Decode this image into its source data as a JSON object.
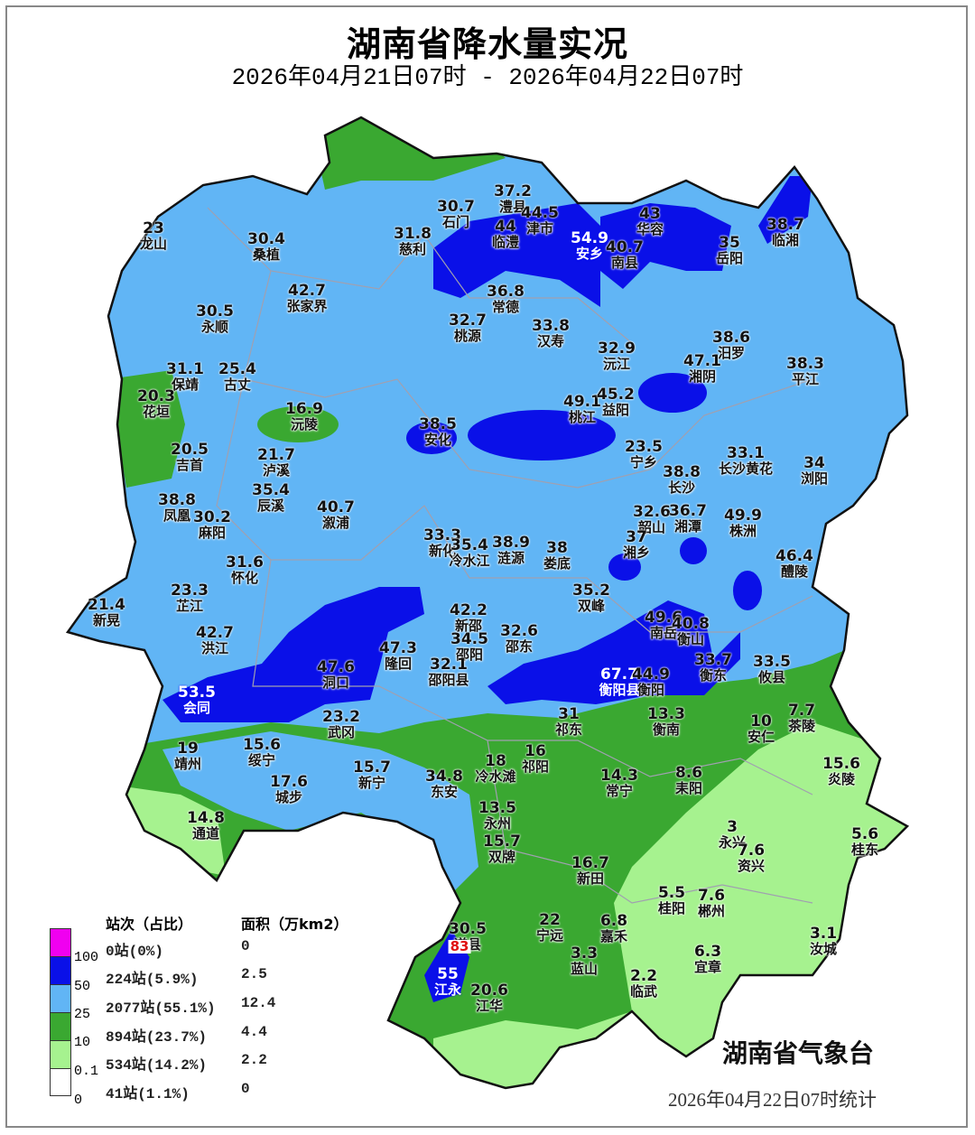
{
  "header": {
    "title": "湖南省降水量实况",
    "subtitle": "2026年04月21日07时 - 2026年04月22日07时"
  },
  "colors": {
    "level_0_0.1": "#ffffff",
    "level_0.1_10": "#a6f28f",
    "level_10_25": "#3aa831",
    "level_25_50": "#61b5f5",
    "level_50_100": "#0a10e8",
    "level_100_plus": "#f000f0",
    "boundary": "#a0a0b0"
  },
  "legend": {
    "header_count": "站次（占比）",
    "header_area": "面积（万km2）",
    "ticks": [
      "100",
      "50",
      "25",
      "10",
      "0.1",
      "0"
    ],
    "rows": [
      {
        "count": "0站(0%)",
        "area": "0"
      },
      {
        "count": "224站(5.9%)",
        "area": "2.5"
      },
      {
        "count": "2077站(55.1%)",
        "area": "12.4"
      },
      {
        "count": "894站(23.7%)",
        "area": "4.4"
      },
      {
        "count": "534站(14.2%)",
        "area": "2.2"
      },
      {
        "count": "41站(1.1%)",
        "area": "0"
      }
    ]
  },
  "stations": [
    {
      "v": "23",
      "n": "龙山"
    },
    {
      "v": "30.4",
      "n": "桑植"
    },
    {
      "v": "31.8",
      "n": "慈利"
    },
    {
      "v": "30.7",
      "n": "石门"
    },
    {
      "v": "37.2",
      "n": "澧县"
    },
    {
      "v": "44.5",
      "n": "津市"
    },
    {
      "v": "44",
      "n": "临澧"
    },
    {
      "v": "54.9",
      "n": "安乡"
    },
    {
      "v": "40.7",
      "n": "南县"
    },
    {
      "v": "43",
      "n": "华容"
    },
    {
      "v": "35",
      "n": "岳阳"
    },
    {
      "v": "38.7",
      "n": "临湘"
    },
    {
      "v": "42.7",
      "n": "张家界"
    },
    {
      "v": "36.8",
      "n": "常德"
    },
    {
      "v": "30.5",
      "n": "永顺"
    },
    {
      "v": "32.7",
      "n": "桃源"
    },
    {
      "v": "33.8",
      "n": "汉寿"
    },
    {
      "v": "38.6",
      "n": "汨罗"
    },
    {
      "v": "32.9",
      "n": "沅江"
    },
    {
      "v": "47.1",
      "n": "湘阴"
    },
    {
      "v": "38.3",
      "n": "平江"
    },
    {
      "v": "31.1",
      "n": "保靖"
    },
    {
      "v": "25.4",
      "n": "古丈"
    },
    {
      "v": "20.3",
      "n": "花垣"
    },
    {
      "v": "16.9",
      "n": "沅陵"
    },
    {
      "v": "49.1",
      "n": "桃江"
    },
    {
      "v": "45.2",
      "n": "益阳"
    },
    {
      "v": "38.5",
      "n": "安化"
    },
    {
      "v": "20.5",
      "n": "吉首"
    },
    {
      "v": "21.7",
      "n": "泸溪"
    },
    {
      "v": "23.5",
      "n": "宁乡"
    },
    {
      "v": "33.1",
      "n": "长沙黄花"
    },
    {
      "v": "34",
      "n": "浏阳"
    },
    {
      "v": "38.8",
      "n": "长沙"
    },
    {
      "v": "35.4",
      "n": "辰溪"
    },
    {
      "v": "38.8",
      "n": "凤凰"
    },
    {
      "v": "30.2",
      "n": "麻阳"
    },
    {
      "v": "40.7",
      "n": "溆浦"
    },
    {
      "v": "32.6",
      "n": "韶山"
    },
    {
      "v": "36.7",
      "n": "湘潭"
    },
    {
      "v": "49.9",
      "n": "株洲"
    },
    {
      "v": "33.3",
      "n": "新化"
    },
    {
      "v": "35.4",
      "n": "冷水江"
    },
    {
      "v": "38.9",
      "n": "涟源"
    },
    {
      "v": "38",
      "n": "娄底"
    },
    {
      "v": "37",
      "n": "湘乡"
    },
    {
      "v": "31.6",
      "n": "怀化"
    },
    {
      "v": "46.4",
      "n": "醴陵"
    },
    {
      "v": "23.3",
      "n": "芷江"
    },
    {
      "v": "35.2",
      "n": "双峰"
    },
    {
      "v": "21.4",
      "n": "新晃"
    },
    {
      "v": "42.2",
      "n": "新邵"
    },
    {
      "v": "34.5",
      "n": "邵阳"
    },
    {
      "v": "32.6",
      "n": "邵东"
    },
    {
      "v": "49.6",
      "n": "南岳"
    },
    {
      "v": "40.8",
      "n": "衡山"
    },
    {
      "v": "42.7",
      "n": "洪江"
    },
    {
      "v": "47.3",
      "n": "隆回"
    },
    {
      "v": "47.6",
      "n": "洞口"
    },
    {
      "v": "32.1",
      "n": "邵阳县"
    },
    {
      "v": "67.7",
      "n": "衡阳县"
    },
    {
      "v": "44.9",
      "n": "衡阳"
    },
    {
      "v": "33.7",
      "n": "衡东"
    },
    {
      "v": "33.5",
      "n": "攸县"
    },
    {
      "v": "53.5",
      "n": "会同"
    },
    {
      "v": "23.2",
      "n": "武冈"
    },
    {
      "v": "31",
      "n": "祁东"
    },
    {
      "v": "13.3",
      "n": "衡南"
    },
    {
      "v": "7.7",
      "n": "茶陵"
    },
    {
      "v": "10",
      "n": "安仁"
    },
    {
      "v": "19",
      "n": "靖州"
    },
    {
      "v": "15.6",
      "n": "绥宁"
    },
    {
      "v": "18",
      "n": "冷水滩"
    },
    {
      "v": "16",
      "n": "祁阳"
    },
    {
      "v": "8.6",
      "n": "耒阳"
    },
    {
      "v": "15.6",
      "n": "炎陵"
    },
    {
      "v": "17.6",
      "n": "城步"
    },
    {
      "v": "15.7",
      "n": "新宁"
    },
    {
      "v": "34.8",
      "n": "东安"
    },
    {
      "v": "14.3",
      "n": "常宁"
    },
    {
      "v": "13.5",
      "n": "永州"
    },
    {
      "v": "14.8",
      "n": "通道"
    },
    {
      "v": "3",
      "n": "永兴"
    },
    {
      "v": "7.6",
      "n": "资兴"
    },
    {
      "v": "5.6",
      "n": "桂东"
    },
    {
      "v": "15.7",
      "n": "双牌"
    },
    {
      "v": "16.7",
      "n": "新田"
    },
    {
      "v": "5.5",
      "n": "桂阳"
    },
    {
      "v": "7.6",
      "n": "郴州"
    },
    {
      "v": "30.5",
      "n": "道县"
    },
    {
      "v": "22",
      "n": "宁远"
    },
    {
      "v": "6.8",
      "n": "嘉禾"
    },
    {
      "v": "3.1",
      "n": "汝城"
    },
    {
      "v": "83",
      "n": ""
    },
    {
      "v": "3.3",
      "n": "蓝山"
    },
    {
      "v": "6.3",
      "n": "宜章"
    },
    {
      "v": "55",
      "n": "江永"
    },
    {
      "v": "20.6",
      "n": "江华"
    },
    {
      "v": "2.2",
      "n": "临武"
    }
  ],
  "footer": {
    "agency": "湖南省气象台",
    "stat_time": "2026年04月22日07时统计"
  }
}
